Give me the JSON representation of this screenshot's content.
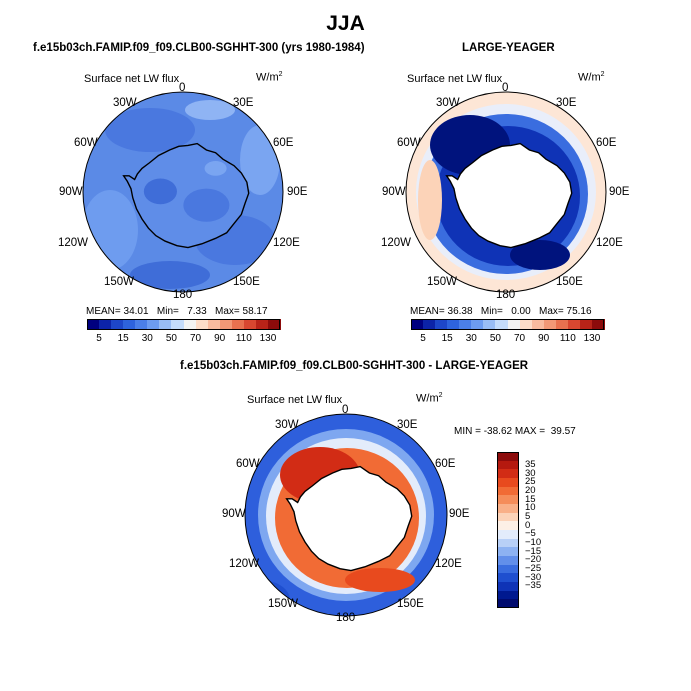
{
  "figure": {
    "season_title": "JJA",
    "panel_a": {
      "title": "f.e15b03ch.FAMIP.f09_f09.CLB00-SGHHT-300 (yrs 1980-1984)",
      "variable": "Surface net LW flux",
      "units": "W/m",
      "units_exp": "2",
      "lon_labels": [
        "0",
        "30E",
        "60E",
        "90E",
        "120E",
        "150E",
        "180",
        "150W",
        "120W",
        "90W",
        "60W",
        "30W"
      ],
      "mean_label": "MEAN=",
      "mean_value": "34.01",
      "min_label": "Min=",
      "min_value": "7.33",
      "max_label": "Max=",
      "max_value": "58.17"
    },
    "panel_b": {
      "title": "LARGE-YEAGER",
      "variable": "Surface net LW flux",
      "units": "W/m",
      "units_exp": "2",
      "lon_labels": [
        "0",
        "30E",
        "60E",
        "90E",
        "120E",
        "150E",
        "180",
        "150W",
        "120W",
        "90W",
        "60W",
        "30W"
      ],
      "mean_label": "MEAN=",
      "mean_value": "36.38",
      "min_label": "Min=",
      "min_value": "0.00",
      "max_label": "Max=",
      "max_value": "75.16"
    },
    "panel_c": {
      "title": "f.e15b03ch.FAMIP.f09_f09.CLB00-SGHHT-300 - LARGE-YEAGER",
      "variable": "Surface net LW flux",
      "units": "W/m",
      "units_exp": "2",
      "lon_labels": [
        "0",
        "30E",
        "60E",
        "90E",
        "120E",
        "150E",
        "180",
        "150W",
        "120W",
        "90W",
        "60W",
        "30W"
      ],
      "min_max_text": "MIN = -38.62 MAX =  39.57"
    },
    "colorbar_abs": {
      "tick_labels": [
        "5",
        "15",
        "30",
        "50",
        "70",
        "90",
        "110",
        "130"
      ],
      "colors": [
        "#00007f",
        "#0c23a8",
        "#1d46c9",
        "#2e63dd",
        "#4b7fe8",
        "#6d9cf0",
        "#99bdf5",
        "#c5dcfb",
        "#f3f3f3",
        "#fddcc8",
        "#f9bb9f",
        "#f29876",
        "#e8714f",
        "#d84730",
        "#b82318",
        "#8c0b0b"
      ]
    },
    "colorbar_diff": {
      "tick_labels": [
        "35",
        "30",
        "25",
        "20",
        "15",
        "10",
        "5",
        "0",
        "−5",
        "−10",
        "−15",
        "−20",
        "−25",
        "−30",
        "−35"
      ],
      "colors": [
        "#8c0b0b",
        "#b5190f",
        "#d22c15",
        "#e84a1e",
        "#f16b35",
        "#f58d5a",
        "#f9b088",
        "#fcd3b8",
        "#fdf0e6",
        "#e3ecfb",
        "#b8d0f7",
        "#8db2f2",
        "#628fea",
        "#3a6ddf",
        "#1f4fcf",
        "#0f33b6",
        "#00198f",
        "#000b6e"
      ]
    }
  }
}
